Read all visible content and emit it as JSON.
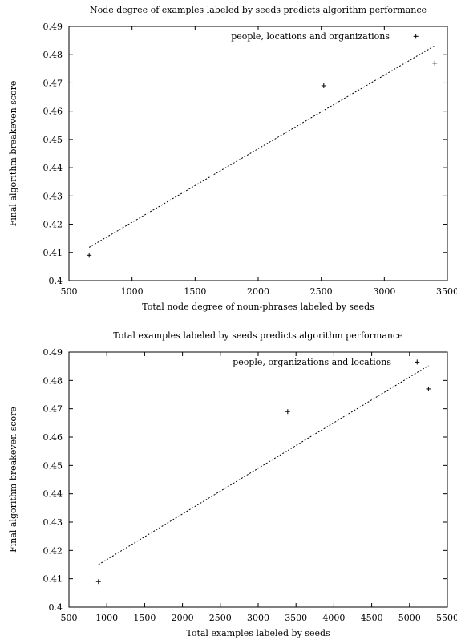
{
  "chart_data": [
    {
      "type": "scatter",
      "title": "Node degree of examples labeled by seeds predicts algorithm performance",
      "xlabel": "Total node degree of noun-phrases labeled by seeds",
      "ylabel": "Final algorithm breakeven score",
      "xlim": [
        500,
        3500
      ],
      "ylim": [
        0.4,
        0.49
      ],
      "xticks": [
        "500",
        "1000",
        "1500",
        "2000",
        "2500",
        "3000",
        "3500"
      ],
      "yticks": [
        "0.4",
        "0.41",
        "0.42",
        "0.43",
        "0.44",
        "0.45",
        "0.46",
        "0.47",
        "0.48",
        "0.49"
      ],
      "legend": "people, locations and organizations",
      "legend_position": "top-right",
      "grid": false,
      "points": [
        {
          "x": 660,
          "y": 0.409
        },
        {
          "x": 2520,
          "y": 0.469
        },
        {
          "x": 3250,
          "y": 0.4865
        },
        {
          "x": 3400,
          "y": 0.477
        }
      ],
      "fit_line": {
        "x": [
          660,
          3400
        ],
        "y": [
          0.4118,
          0.4832
        ]
      }
    },
    {
      "type": "scatter",
      "title": "Total examples labeled by seeds predicts algorithm performance",
      "xlabel": "Total examples labeled by seeds",
      "ylabel": "Final algorithm breakeven score",
      "xlim": [
        500,
        5500
      ],
      "ylim": [
        0.4,
        0.49
      ],
      "xticks": [
        "500",
        "1000",
        "1500",
        "2000",
        "2500",
        "3000",
        "3500",
        "4000",
        "4500",
        "5000",
        "5500"
      ],
      "yticks": [
        "0.4",
        "0.41",
        "0.42",
        "0.43",
        "0.44",
        "0.45",
        "0.46",
        "0.47",
        "0.48",
        "0.49"
      ],
      "legend": "people, organizations and locations",
      "legend_position": "top-right",
      "grid": false,
      "points": [
        {
          "x": 890,
          "y": 0.409
        },
        {
          "x": 3390,
          "y": 0.469
        },
        {
          "x": 5100,
          "y": 0.4865
        },
        {
          "x": 5250,
          "y": 0.477
        }
      ],
      "fit_line": {
        "x": [
          890,
          5250
        ],
        "y": [
          0.415,
          0.4852
        ]
      }
    }
  ]
}
